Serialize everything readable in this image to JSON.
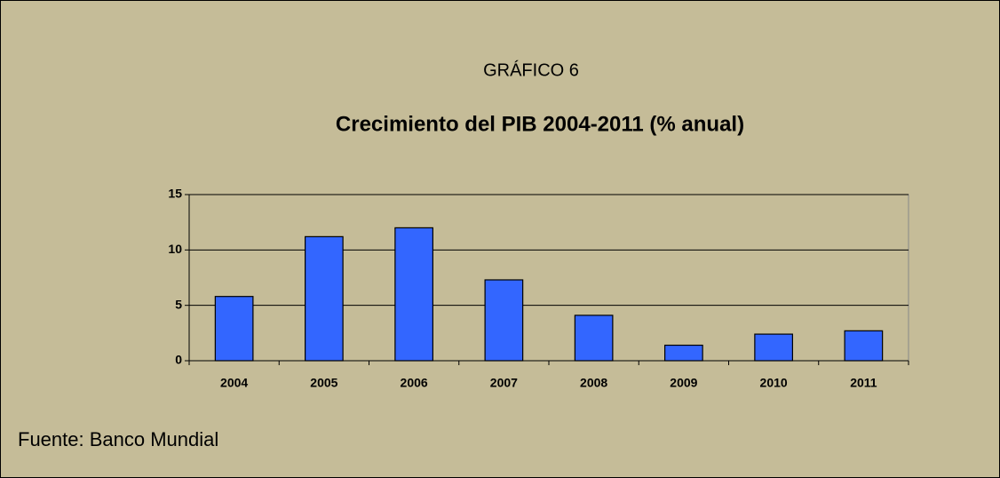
{
  "chart_data": {
    "type": "bar",
    "label": "GRÁFICO 6",
    "title": "Crecimiento del PIB 2004-2011 (% anual)",
    "categories": [
      "2004",
      "2005",
      "2006",
      "2007",
      "2008",
      "2009",
      "2010",
      "2011"
    ],
    "values": [
      5.8,
      11.2,
      12.0,
      7.3,
      4.1,
      1.4,
      2.4,
      2.7
    ],
    "color": "#3366ff",
    "ylim": [
      0,
      15
    ],
    "yticks": [
      0,
      5,
      10,
      15
    ],
    "grid": true,
    "source": "Fuente: Banco Mundial"
  }
}
